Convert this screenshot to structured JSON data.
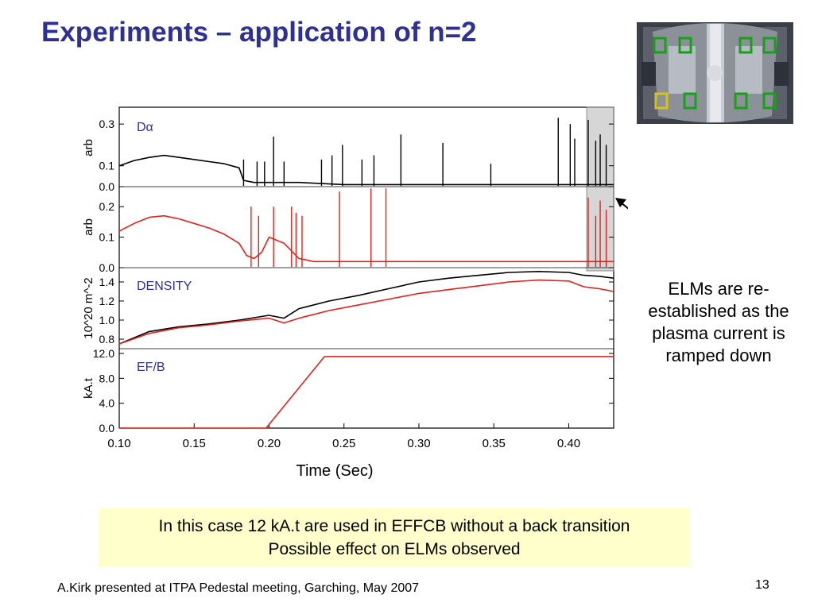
{
  "slide": {
    "title": "Experiments – application of n=2",
    "callout": [
      "ELMs are re-",
      "established as the",
      "plasma current is",
      "ramped down"
    ],
    "note": [
      "In this case 12 kA.t are used in EFFCB without a back transition",
      "Possible effect on ELMs observed"
    ],
    "footer": "A.Kirk presented at ITPA Pedestal meeting, Garching, May 2007",
    "page_number": "13"
  },
  "colors": {
    "title": "#2e3192",
    "panel_label": "#2e3192",
    "series_black": "#000000",
    "series_red": "#e3201b",
    "highlight_box": "#999999",
    "note_background": "#ffffcc"
  },
  "chart_data": {
    "type": "line",
    "xlabel": "Time (Sec)",
    "xlim": [
      0.1,
      0.43
    ],
    "xticks": [
      "0.10",
      "0.15",
      "0.20",
      "0.25",
      "0.30",
      "0.35",
      "0.40"
    ],
    "highlight_region": [
      0.412,
      0.43
    ],
    "panels": [
      {
        "label": "Dα",
        "ylabel": "arb",
        "ylim": [
          0.0,
          0.35
        ],
        "yticks": [
          "0.3",
          "0.1",
          "0.0"
        ],
        "ytick_values": [
          0.3,
          0.1,
          0.0
        ],
        "series": [
          {
            "color": "#000000",
            "x": [
              0.1,
              0.11,
              0.12,
              0.13,
              0.14,
              0.15,
              0.16,
              0.17,
              0.18,
              0.183,
              0.19,
              0.2,
              0.21,
              0.22,
              0.25,
              0.3,
              0.35,
              0.4,
              0.43
            ],
            "y": [
              0.1,
              0.125,
              0.14,
              0.15,
              0.14,
              0.13,
              0.12,
              0.11,
              0.09,
              0.03,
              0.02,
              0.02,
              0.02,
              0.02,
              0.01,
              0.01,
              0.01,
              0.01,
              0.01
            ],
            "spikes": [
              {
                "x": 0.183,
                "y": 0.13
              },
              {
                "x": 0.192,
                "y": 0.12
              },
              {
                "x": 0.197,
                "y": 0.12
              },
              {
                "x": 0.203,
                "y": 0.24
              },
              {
                "x": 0.21,
                "y": 0.12
              },
              {
                "x": 0.235,
                "y": 0.13
              },
              {
                "x": 0.242,
                "y": 0.15
              },
              {
                "x": 0.249,
                "y": 0.2
              },
              {
                "x": 0.262,
                "y": 0.13
              },
              {
                "x": 0.27,
                "y": 0.15
              },
              {
                "x": 0.288,
                "y": 0.25
              },
              {
                "x": 0.316,
                "y": 0.21
              },
              {
                "x": 0.348,
                "y": 0.11
              },
              {
                "x": 0.393,
                "y": 0.33
              },
              {
                "x": 0.401,
                "y": 0.3
              },
              {
                "x": 0.404,
                "y": 0.23
              },
              {
                "x": 0.413,
                "y": 0.32
              },
              {
                "x": 0.418,
                "y": 0.22
              },
              {
                "x": 0.421,
                "y": 0.25
              },
              {
                "x": 0.425,
                "y": 0.2
              }
            ]
          }
        ]
      },
      {
        "label": "",
        "ylabel": "arb",
        "ylim": [
          0.0,
          0.25
        ],
        "yticks": [
          "0.2",
          "0.1",
          "0.0"
        ],
        "ytick_values": [
          0.2,
          0.1,
          0.0
        ],
        "series": [
          {
            "color": "#e3201b",
            "x": [
              0.1,
              0.11,
              0.12,
              0.13,
              0.14,
              0.15,
              0.16,
              0.17,
              0.18,
              0.185,
              0.19,
              0.195,
              0.2,
              0.21,
              0.22,
              0.23,
              0.25,
              0.3,
              0.35,
              0.4,
              0.43
            ],
            "y": [
              0.12,
              0.145,
              0.165,
              0.17,
              0.16,
              0.145,
              0.13,
              0.11,
              0.08,
              0.04,
              0.03,
              0.05,
              0.1,
              0.08,
              0.03,
              0.02,
              0.02,
              0.02,
              0.02,
              0.02,
              0.02
            ],
            "spikes": [
              {
                "x": 0.188,
                "y": 0.2
              },
              {
                "x": 0.193,
                "y": 0.17
              },
              {
                "x": 0.203,
                "y": 0.2
              },
              {
                "x": 0.215,
                "y": 0.2
              },
              {
                "x": 0.218,
                "y": 0.18
              },
              {
                "x": 0.222,
                "y": 0.17
              },
              {
                "x": 0.247,
                "y": 0.25
              },
              {
                "x": 0.268,
                "y": 0.26
              },
              {
                "x": 0.278,
                "y": 0.26
              },
              {
                "x": 0.413,
                "y": 0.23
              },
              {
                "x": 0.418,
                "y": 0.17
              },
              {
                "x": 0.421,
                "y": 0.22
              },
              {
                "x": 0.425,
                "y": 0.19
              }
            ]
          }
        ]
      },
      {
        "label": "DENSITY",
        "ylabel": "10^20 m^-2",
        "ylim": [
          0.7,
          1.5
        ],
        "yticks": [
          "1.4",
          "1.2",
          "1.0",
          "0.8"
        ],
        "ytick_values": [
          1.4,
          1.2,
          1.0,
          0.8
        ],
        "series": [
          {
            "color": "#000000",
            "x": [
              0.1,
              0.12,
              0.14,
              0.16,
              0.18,
              0.2,
              0.21,
              0.22,
              0.24,
              0.26,
              0.28,
              0.3,
              0.32,
              0.34,
              0.36,
              0.38,
              0.4,
              0.41,
              0.42,
              0.43
            ],
            "y": [
              0.75,
              0.88,
              0.93,
              0.96,
              1.0,
              1.05,
              1.02,
              1.12,
              1.2,
              1.26,
              1.33,
              1.4,
              1.44,
              1.47,
              1.5,
              1.51,
              1.5,
              1.47,
              1.46,
              1.44
            ]
          },
          {
            "color": "#e3201b",
            "x": [
              0.1,
              0.12,
              0.14,
              0.16,
              0.18,
              0.2,
              0.21,
              0.22,
              0.24,
              0.26,
              0.28,
              0.3,
              0.32,
              0.34,
              0.36,
              0.38,
              0.4,
              0.41,
              0.42,
              0.43
            ],
            "y": [
              0.75,
              0.86,
              0.92,
              0.95,
              0.99,
              1.02,
              0.97,
              1.02,
              1.1,
              1.16,
              1.22,
              1.28,
              1.32,
              1.36,
              1.4,
              1.42,
              1.41,
              1.35,
              1.33,
              1.3
            ]
          }
        ]
      },
      {
        "label": "EF/B",
        "ylabel": "kA.t",
        "ylim": [
          0.0,
          12.0
        ],
        "yticks": [
          "12.0",
          "8.0",
          "4.0",
          "0.0"
        ],
        "ytick_values": [
          12.0,
          8.0,
          4.0,
          0.0
        ],
        "series": [
          {
            "color": "#e3201b",
            "x": [
              0.1,
              0.198,
              0.237,
              0.43
            ],
            "y": [
              0.0,
              0.0,
              11.5,
              11.5
            ]
          }
        ]
      }
    ]
  },
  "thumbnail": {
    "alt": "tokamak vessel interior image"
  }
}
